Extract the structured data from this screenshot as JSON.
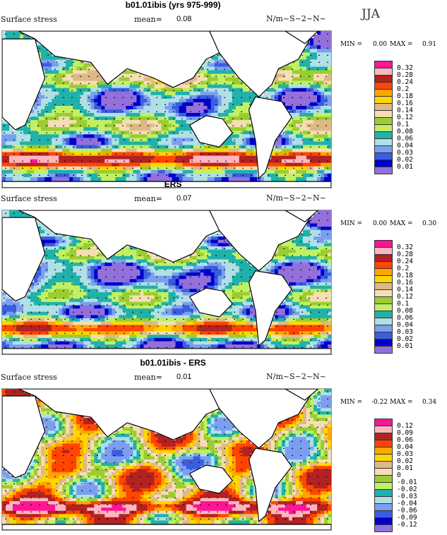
{
  "season": "JJA",
  "panels": [
    {
      "title": "b01.01ibis (yrs 975-999)",
      "field": "Surface stress",
      "mean_label": "mean=",
      "mean_value": "0.08",
      "units": "N/m~S~2~N~",
      "min_label": "MIN =",
      "min_value": "0.00",
      "max_label": "MAX =",
      "max_value": "0.91",
      "levels": [
        "0.32",
        "0.28",
        "0.24",
        "0.2",
        "0.18",
        "0.16",
        "0.14",
        "0.12",
        "0.1",
        "0.08",
        "0.06",
        "0.04",
        "0.03",
        "0.02",
        "0.01"
      ]
    },
    {
      "title": "ERS",
      "field": "Surface stress",
      "mean_label": "mean=",
      "mean_value": "0.07",
      "units": "N/m~S~2~N~",
      "min_label": "MIN =",
      "min_value": "0.00",
      "max_label": "MAX =",
      "max_value": "0.30",
      "levels": [
        "0.32",
        "0.28",
        "0.24",
        "0.2",
        "0.18",
        "0.16",
        "0.14",
        "0.12",
        "0.1",
        "0.08",
        "0.06",
        "0.04",
        "0.03",
        "0.02",
        "0.01"
      ]
    },
    {
      "title": "b01.01ibis - ERS",
      "field": "Surface stress",
      "mean_label": "mean=",
      "mean_value": "0.01",
      "units": "N/m~S~2~N~",
      "min_label": "MIN =",
      "min_value": "-0.22",
      "max_label": "MAX =",
      "max_value": "0.34",
      "levels": [
        "0.12",
        "0.09",
        "0.06",
        "0.04",
        "0.03",
        "0.02",
        "0.01",
        "0",
        "-0.01",
        "-0.02",
        "-0.03",
        "-0.04",
        "-0.06",
        "-0.09",
        "-0.12"
      ]
    }
  ],
  "colorbar_colors": [
    "#ff1493",
    "#ffb6c1",
    "#b22222",
    "#ff4500",
    "#ffa500",
    "#ffd700",
    "#deb887",
    "#f5deb3",
    "#9acd32",
    "#c1f064",
    "#20b2aa",
    "#b0e0e6",
    "#7b9ff0",
    "#3a5ee0",
    "#0000cd",
    "#9370db"
  ]
}
